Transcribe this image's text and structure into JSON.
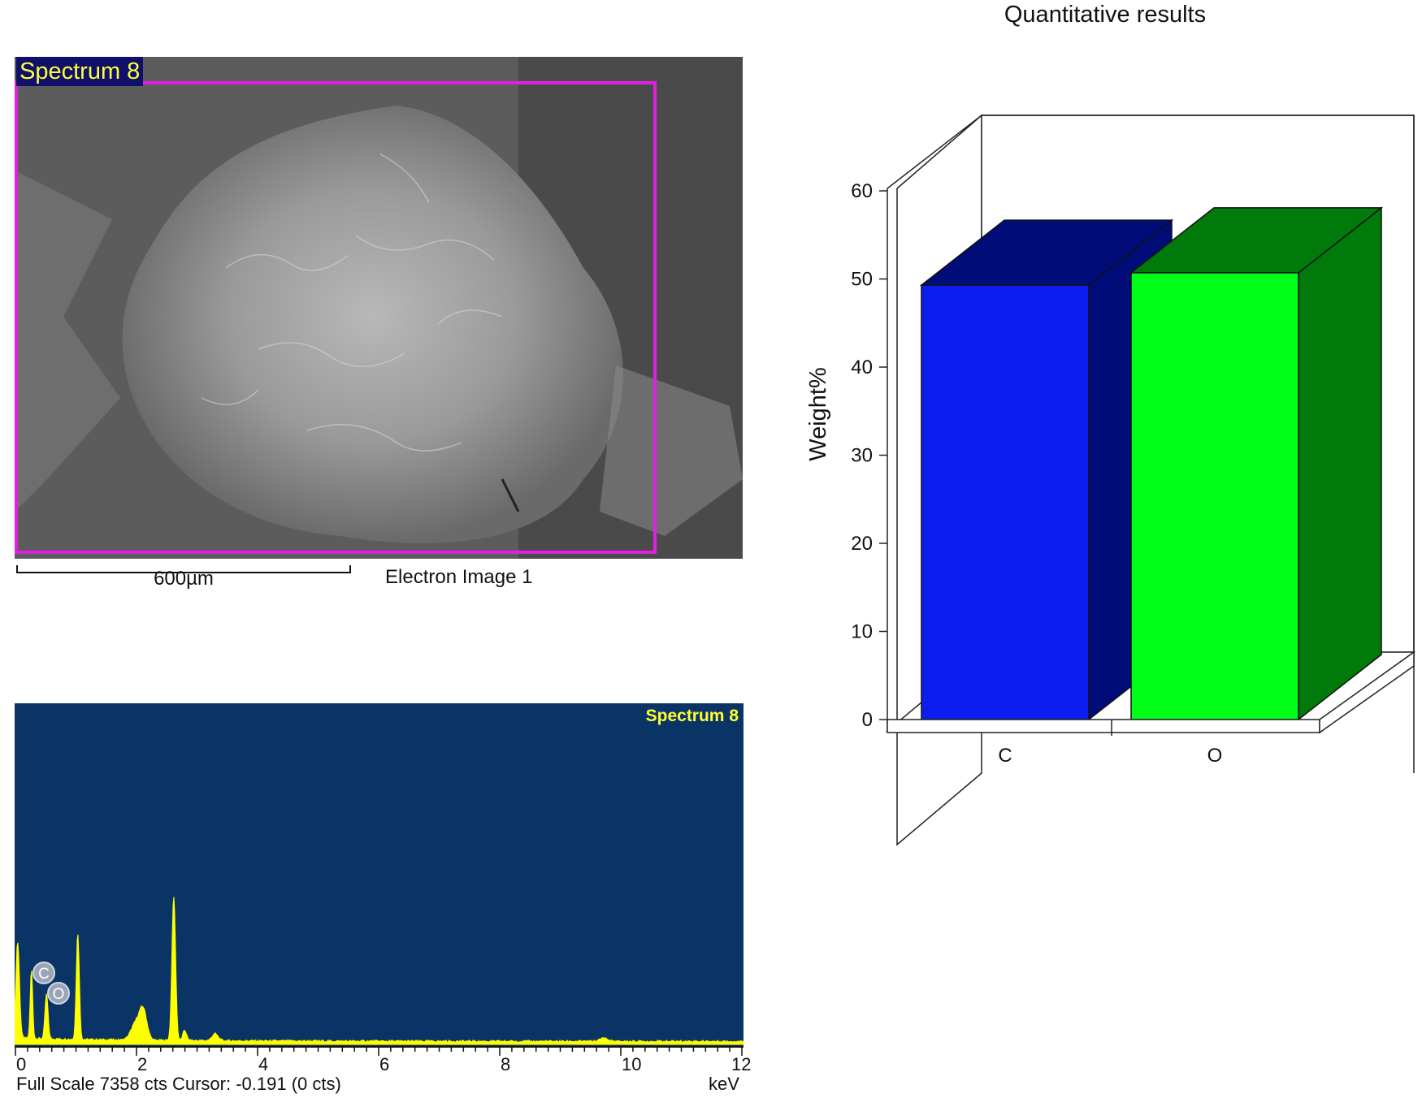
{
  "electron_image": {
    "spectrum_label": "Spectrum 8",
    "scale_bar_label": "600µm",
    "caption": "Electron Image 1"
  },
  "spectrum": {
    "title": "Spectrum 8",
    "peak_labels": [
      "C",
      "O"
    ],
    "x_ticks": [
      "0",
      "2",
      "4",
      "6",
      "8",
      "10",
      "12"
    ],
    "x_unit": "keV",
    "footer": "Full Scale 7358 cts Cursor: -0.191  (0 cts)",
    "colors": {
      "background": "#0b3466",
      "signal": "#ffff00",
      "title": "#ffff30"
    }
  },
  "quantitative": {
    "title": "Quantitative results"
  },
  "chart_data": {
    "type": "bar",
    "title": "Quantitative results",
    "categories": [
      "C",
      "O"
    ],
    "values": [
      49.3,
      50.7
    ],
    "xlabel": "",
    "ylabel": "Weight%",
    "ylim": [
      0,
      60
    ],
    "yticks": [
      "0",
      "10",
      "20",
      "30",
      "40",
      "50",
      "60"
    ],
    "colors": {
      "C": "#0a1ef0",
      "O": "#00ff16"
    },
    "side_colors": {
      "C": "#000c78",
      "O": "#007a0a"
    }
  }
}
